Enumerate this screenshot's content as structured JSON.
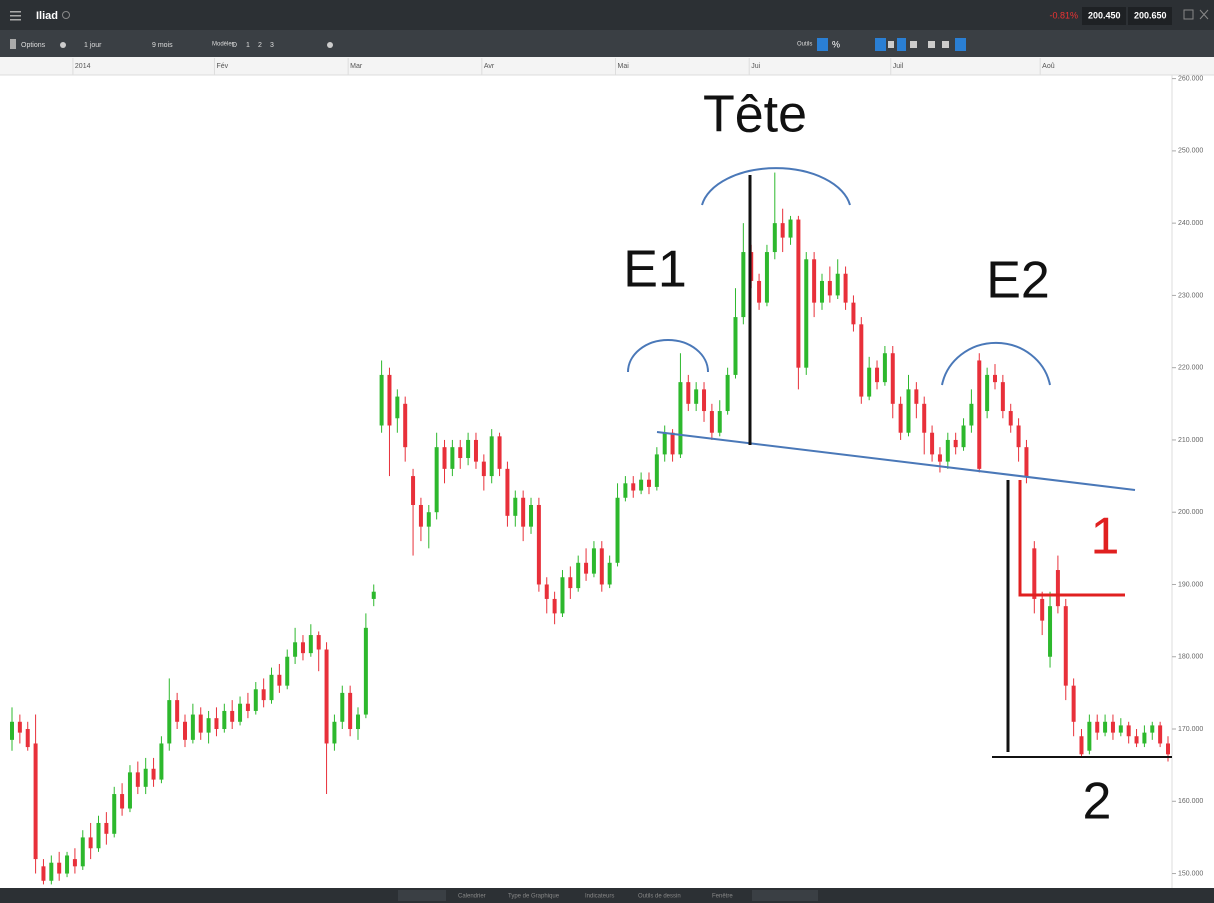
{
  "header": {
    "title": "Iliad",
    "change": "-0.81%",
    "bid": "200.450",
    "ask": "200.650"
  },
  "toolbar": {
    "options": "Options",
    "interval": "1 jour",
    "period": "9 mois",
    "templates": "Modèles",
    "buttons": [
      "D",
      "1",
      "2",
      "3"
    ],
    "tools": "Outils",
    "percent": "%"
  },
  "footer": {
    "tabs": [
      "Calendrier",
      "Type de Graphique",
      "Indicateurs",
      "Outils de dessin",
      "Fenêtre"
    ]
  },
  "chart_data": {
    "type": "candlestick",
    "annotations": {
      "head": "Tête",
      "left_shoulder": "E1",
      "right_shoulder": "E2",
      "target_1": "1",
      "target_2": "2"
    },
    "up_color": "#2db82d",
    "down_color": "#e8303a",
    "ylim": [
      148,
      260.5
    ],
    "yticks": [
      {
        "value": 150,
        "label": "150.000"
      },
      {
        "value": 160,
        "label": "160.000"
      },
      {
        "value": 170,
        "label": "170.000"
      },
      {
        "value": 180,
        "label": "180.000"
      },
      {
        "value": 190,
        "label": "190.000"
      },
      {
        "value": 200,
        "label": "200.000"
      },
      {
        "value": 210,
        "label": "210.000"
      },
      {
        "value": 220,
        "label": "220.000"
      },
      {
        "value": 230,
        "label": "230.000"
      },
      {
        "value": 240,
        "label": "240.000"
      },
      {
        "value": 250,
        "label": "250.000"
      },
      {
        "value": 260,
        "label": "260.000"
      }
    ],
    "categories": [
      null,
      null,
      null,
      null,
      null,
      null,
      null,
      null,
      "2014",
      null,
      null,
      null,
      null,
      null,
      null,
      null,
      null,
      null,
      null,
      null,
      null,
      null,
      null,
      null,
      null,
      null,
      "Fév",
      null,
      null,
      null,
      null,
      null,
      null,
      null,
      null,
      null,
      null,
      null,
      null,
      null,
      null,
      null,
      null,
      "Mar",
      null,
      null,
      null,
      null,
      null,
      null,
      null,
      null,
      null,
      null,
      null,
      null,
      null,
      null,
      null,
      null,
      "Avr",
      null,
      null,
      null,
      null,
      null,
      null,
      null,
      null,
      null,
      null,
      null,
      null,
      null,
      null,
      null,
      null,
      "Mai",
      null,
      null,
      null,
      null,
      null,
      null,
      null,
      null,
      null,
      null,
      null,
      null,
      null,
      null,
      null,
      null,
      "Jui",
      null,
      null,
      null,
      null,
      null,
      null,
      null,
      null,
      null,
      null,
      null,
      null,
      null,
      null,
      null,
      null,
      null,
      "Juil",
      null,
      null,
      null,
      null,
      null,
      null,
      null,
      null,
      null,
      null,
      null,
      null,
      null,
      null,
      null,
      null,
      null,
      null,
      "Aoû",
      null,
      null,
      null,
      null,
      null,
      null,
      null,
      null,
      null,
      null,
      null,
      null,
      null,
      null,
      null,
      null
    ],
    "candles": [
      [
        168.5,
        173,
        167,
        171
      ],
      [
        171,
        172,
        168,
        169.5
      ],
      [
        170,
        171,
        167,
        167.5
      ],
      [
        168,
        172,
        150,
        152
      ],
      [
        151,
        152,
        148.5,
        149
      ],
      [
        149,
        152.5,
        148.5,
        151.5
      ],
      [
        151.5,
        153,
        149,
        150
      ],
      [
        150,
        153,
        149.5,
        152.5
      ],
      [
        152,
        153.5,
        150,
        151
      ],
      [
        151,
        156,
        150.5,
        155
      ],
      [
        155,
        157,
        152,
        153.5
      ],
      [
        153.5,
        158,
        153,
        157
      ],
      [
        157,
        158.5,
        154,
        155.5
      ],
      [
        155.5,
        162,
        155,
        161
      ],
      [
        161,
        162.5,
        158,
        159
      ],
      [
        159,
        165,
        158.5,
        164
      ],
      [
        164,
        165.5,
        161,
        162
      ],
      [
        162,
        166,
        161,
        164.5
      ],
      [
        164.5,
        166,
        162,
        163
      ],
      [
        163,
        169,
        162.5,
        168
      ],
      [
        168,
        177,
        167,
        174
      ],
      [
        174,
        175,
        170,
        171
      ],
      [
        171,
        172,
        167.5,
        168.5
      ],
      [
        168.5,
        173.5,
        168,
        172
      ],
      [
        172,
        173,
        168.5,
        169.5
      ],
      [
        169.5,
        172.5,
        168,
        171.5
      ],
      [
        171.5,
        173,
        169,
        170
      ],
      [
        170,
        173.5,
        169.5,
        172.5
      ],
      [
        172.5,
        174,
        170,
        171
      ],
      [
        171,
        174.5,
        170.5,
        173.5
      ],
      [
        173.5,
        175,
        171.5,
        172.5
      ],
      [
        172.5,
        176.5,
        172,
        175.5
      ],
      [
        175.5,
        177,
        173,
        174
      ],
      [
        174,
        178.5,
        173.5,
        177.5
      ],
      [
        177.5,
        179,
        175,
        176
      ],
      [
        176,
        181,
        175.5,
        180
      ],
      [
        180,
        184,
        179,
        182
      ],
      [
        182,
        183,
        179.5,
        180.5
      ],
      [
        180.5,
        184.5,
        180,
        183
      ],
      [
        183,
        183.5,
        178,
        181
      ],
      [
        181,
        182,
        161,
        168
      ],
      [
        168,
        172,
        167,
        171
      ],
      [
        171,
        176,
        170,
        175
      ],
      [
        175,
        176,
        169,
        170
      ],
      [
        170,
        173,
        168.5,
        172
      ],
      [
        172,
        186,
        171.5,
        184
      ],
      [
        188,
        190,
        187,
        189
      ],
      [
        212,
        221,
        211,
        219
      ],
      [
        219,
        220,
        205,
        212
      ],
      [
        213,
        217,
        211,
        216
      ],
      [
        215,
        216,
        207,
        209
      ],
      [
        205,
        206,
        194,
        201
      ],
      [
        201,
        202,
        196,
        198
      ],
      [
        198,
        201,
        195,
        200
      ],
      [
        200,
        211,
        199,
        209
      ],
      [
        209,
        210,
        204,
        206
      ],
      [
        206,
        210,
        205,
        209
      ],
      [
        209,
        210,
        206,
        207.5
      ],
      [
        207.5,
        211,
        206.5,
        210
      ],
      [
        210,
        211,
        206,
        207
      ],
      [
        207,
        208,
        203,
        205
      ],
      [
        205,
        211.5,
        204,
        210.5
      ],
      [
        210.5,
        211,
        205,
        206
      ],
      [
        206,
        207,
        198,
        199.5
      ],
      [
        199.5,
        203,
        198,
        202
      ],
      [
        202,
        203,
        196,
        198
      ],
      [
        198,
        202,
        197,
        201
      ],
      [
        201,
        202,
        189,
        190
      ],
      [
        190,
        191,
        186,
        188
      ],
      [
        188,
        189,
        184.5,
        186
      ],
      [
        186,
        192,
        185.5,
        191
      ],
      [
        191,
        192.5,
        188,
        189.5
      ],
      [
        189.5,
        194,
        189,
        193
      ],
      [
        193,
        195,
        190.5,
        191.5
      ],
      [
        191.5,
        196,
        191,
        195
      ],
      [
        195,
        196,
        189,
        190
      ],
      [
        190,
        194,
        189.5,
        193
      ],
      [
        193,
        204,
        192.5,
        202
      ],
      [
        202,
        205,
        201.5,
        204
      ],
      [
        204,
        205,
        202,
        203
      ],
      [
        203,
        205.5,
        202.5,
        204.5
      ],
      [
        204.5,
        205.5,
        202.5,
        203.5
      ],
      [
        203.5,
        209,
        203,
        208
      ],
      [
        208,
        212,
        207,
        211
      ],
      [
        211,
        211.5,
        207,
        208
      ],
      [
        208,
        222,
        207.5,
        218
      ],
      [
        218,
        219,
        214,
        215
      ],
      [
        215,
        218,
        214,
        217
      ],
      [
        217,
        218,
        212.5,
        214
      ],
      [
        214,
        215,
        210,
        211
      ],
      [
        211,
        215.5,
        210.5,
        214
      ],
      [
        214,
        220,
        213.5,
        219
      ],
      [
        219,
        231,
        218.5,
        227
      ],
      [
        227,
        240,
        226,
        236
      ],
      [
        236,
        237,
        231,
        232
      ],
      [
        232,
        233,
        228,
        229
      ],
      [
        229,
        237,
        228.5,
        236
      ],
      [
        236,
        247,
        235,
        240
      ],
      [
        240,
        242,
        236,
        238
      ],
      [
        238,
        241,
        237,
        240.5
      ],
      [
        240.5,
        241,
        217,
        220
      ],
      [
        220,
        236,
        219,
        235
      ],
      [
        235,
        236,
        227,
        229
      ],
      [
        229,
        233,
        228,
        232
      ],
      [
        232,
        234,
        229,
        230
      ],
      [
        230,
        235,
        229.5,
        233
      ],
      [
        233,
        234,
        228,
        229
      ],
      [
        229,
        230,
        225,
        226
      ],
      [
        226,
        227,
        215,
        216
      ],
      [
        216,
        221.5,
        215.5,
        220
      ],
      [
        220,
        221,
        217,
        218
      ],
      [
        218,
        223,
        217.5,
        222
      ],
      [
        222,
        223,
        213,
        215
      ],
      [
        215,
        216,
        210,
        211
      ],
      [
        211,
        219,
        210.5,
        217
      ],
      [
        217,
        218,
        213,
        215
      ],
      [
        215,
        216,
        208,
        211
      ],
      [
        211,
        212,
        207,
        208
      ],
      [
        208,
        209,
        205.5,
        207
      ],
      [
        207,
        211,
        206,
        210
      ],
      [
        210,
        211,
        208,
        209
      ],
      [
        209,
        213,
        208.5,
        212
      ],
      [
        212,
        217,
        211,
        215
      ],
      [
        221,
        222,
        205.5,
        206
      ],
      [
        214,
        220,
        213,
        219
      ],
      [
        219,
        220.5,
        217,
        218
      ],
      [
        218,
        219,
        213,
        214
      ],
      [
        214,
        215,
        211,
        212
      ],
      [
        212,
        213,
        207,
        209
      ],
      [
        209,
        210,
        204,
        205
      ],
      [
        195,
        196,
        186,
        188
      ],
      [
        188,
        189,
        183,
        185
      ],
      [
        180,
        189,
        178.5,
        187
      ],
      [
        192,
        194,
        186,
        187
      ],
      [
        187,
        188,
        174,
        176
      ],
      [
        176,
        177,
        169,
        171
      ],
      [
        169,
        170,
        166,
        166.5
      ],
      [
        167,
        172,
        166.5,
        171
      ],
      [
        171,
        172,
        168.5,
        169.5
      ],
      [
        169.5,
        172,
        169,
        171
      ],
      [
        171,
        172,
        168.5,
        169.5
      ],
      [
        169.5,
        171.5,
        169,
        170.5
      ],
      [
        170.5,
        171,
        168,
        169
      ],
      [
        169,
        170,
        167.5,
        168
      ],
      [
        168,
        170.5,
        167.5,
        169.5
      ],
      [
        169.5,
        171,
        168.5,
        170.5
      ],
      [
        170.5,
        171,
        167.5,
        168
      ],
      [
        168,
        169,
        165.5,
        166.5
      ]
    ]
  }
}
